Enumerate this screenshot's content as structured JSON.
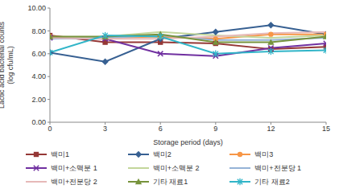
{
  "chart_data": {
    "type": "line",
    "x_label": "Storage period (days)",
    "y_label": [
      "Lactic acid bacterial counts",
      "(log cfu/mL)"
    ],
    "x": [
      0,
      3,
      6,
      9,
      12,
      15
    ],
    "xlim": [
      0,
      15
    ],
    "xticks": [
      0,
      3,
      6,
      9,
      12,
      15
    ],
    "ylim": [
      0,
      10
    ],
    "yticks": [
      {
        "value": 0,
        "label": "0.00"
      },
      {
        "value": 2,
        "label": "2.00"
      },
      {
        "value": 4,
        "label": "4.00"
      },
      {
        "value": 6,
        "label": "6.00"
      },
      {
        "value": 8,
        "label": "8.00"
      },
      {
        "value": 10,
        "label": "10.00"
      }
    ],
    "grid": false,
    "legend": "bottom",
    "series": [
      {
        "name": "백미1",
        "color": "#953735",
        "marker": "square",
        "values": [
          7.6,
          7.0,
          7.0,
          6.9,
          6.4,
          6.6
        ]
      },
      {
        "name": "백미2",
        "color": "#376092",
        "marker": "diamond",
        "values": [
          6.1,
          5.3,
          7.3,
          7.9,
          8.5,
          7.7
        ]
      },
      {
        "name": "백미3",
        "color": "#f79646",
        "marker": "circle",
        "values": [
          7.5,
          7.4,
          7.5,
          7.3,
          7.7,
          7.7
        ]
      },
      {
        "name": "백미+소맥분 1",
        "color": "#7030a0",
        "marker": "x",
        "values": [
          7.4,
          7.3,
          6.0,
          5.8,
          6.5,
          6.9
        ]
      },
      {
        "name": "백미+소맥분 2",
        "color": "#c3d69b",
        "marker": "none",
        "values": [
          7.3,
          7.5,
          7.9,
          7.6,
          7.4,
          7.6
        ]
      },
      {
        "name": "백미+전분당 1",
        "color": "#95b3d7",
        "marker": "none",
        "values": [
          7.3,
          7.4,
          7.6,
          7.2,
          7.2,
          7.4
        ]
      },
      {
        "name": "백미+전분당 2",
        "color": "#e6b9b8",
        "marker": "none",
        "values": [
          7.4,
          7.3,
          7.3,
          7.5,
          7.8,
          7.9
        ]
      },
      {
        "name": "기타 재료1",
        "color": "#77933c",
        "marker": "triangle",
        "values": [
          7.5,
          7.5,
          7.7,
          7.0,
          7.0,
          7.5
        ]
      },
      {
        "name": "기타 재료2",
        "color": "#31b5c8",
        "marker": "star",
        "values": [
          6.1,
          7.6,
          7.5,
          6.0,
          6.2,
          6.3
        ]
      }
    ]
  }
}
